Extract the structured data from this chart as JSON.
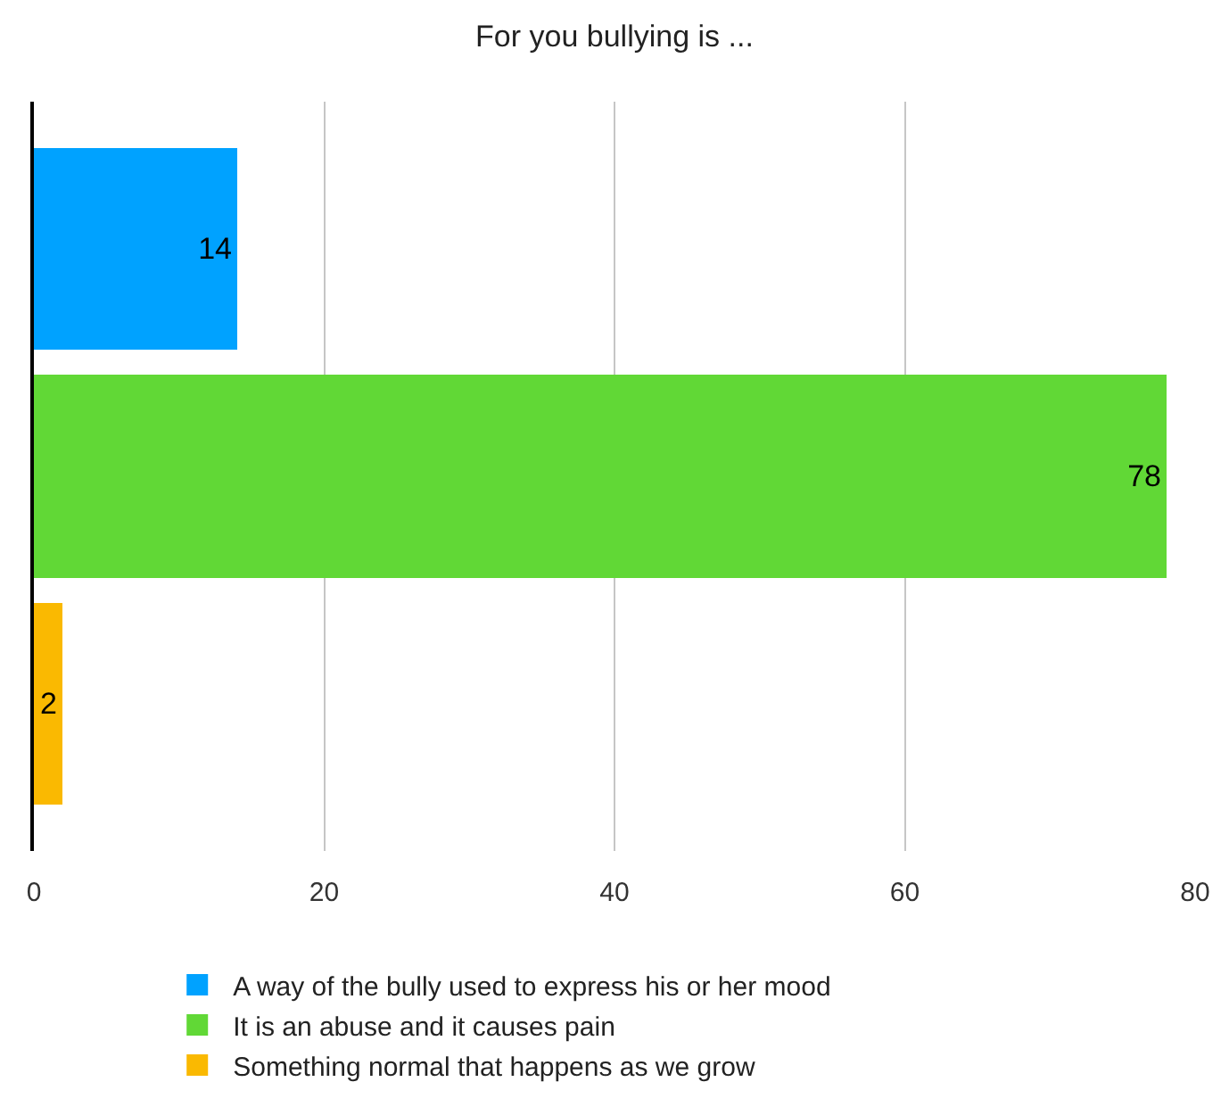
{
  "chart_data": {
    "type": "bar",
    "title": "For you bullying is ...",
    "orientation": "horizontal",
    "categories": [
      null,
      null,
      null
    ],
    "series": [
      {
        "name": "A way of the bully used to express his or her mood",
        "color": "#00a2ff",
        "values": [
          14,
          null,
          null
        ]
      },
      {
        "name": "It is an abuse and it causes pain",
        "color": "#61d836",
        "values": [
          null,
          78,
          null
        ]
      },
      {
        "name": "Something normal that happens as we grow",
        "color": "#fab901",
        "values": [
          null,
          null,
          2
        ]
      }
    ],
    "xlim": [
      0,
      80
    ],
    "xticks": [
      0,
      20,
      40,
      60,
      80
    ],
    "grid": "x",
    "legend": "bottom",
    "data_labels": true
  }
}
